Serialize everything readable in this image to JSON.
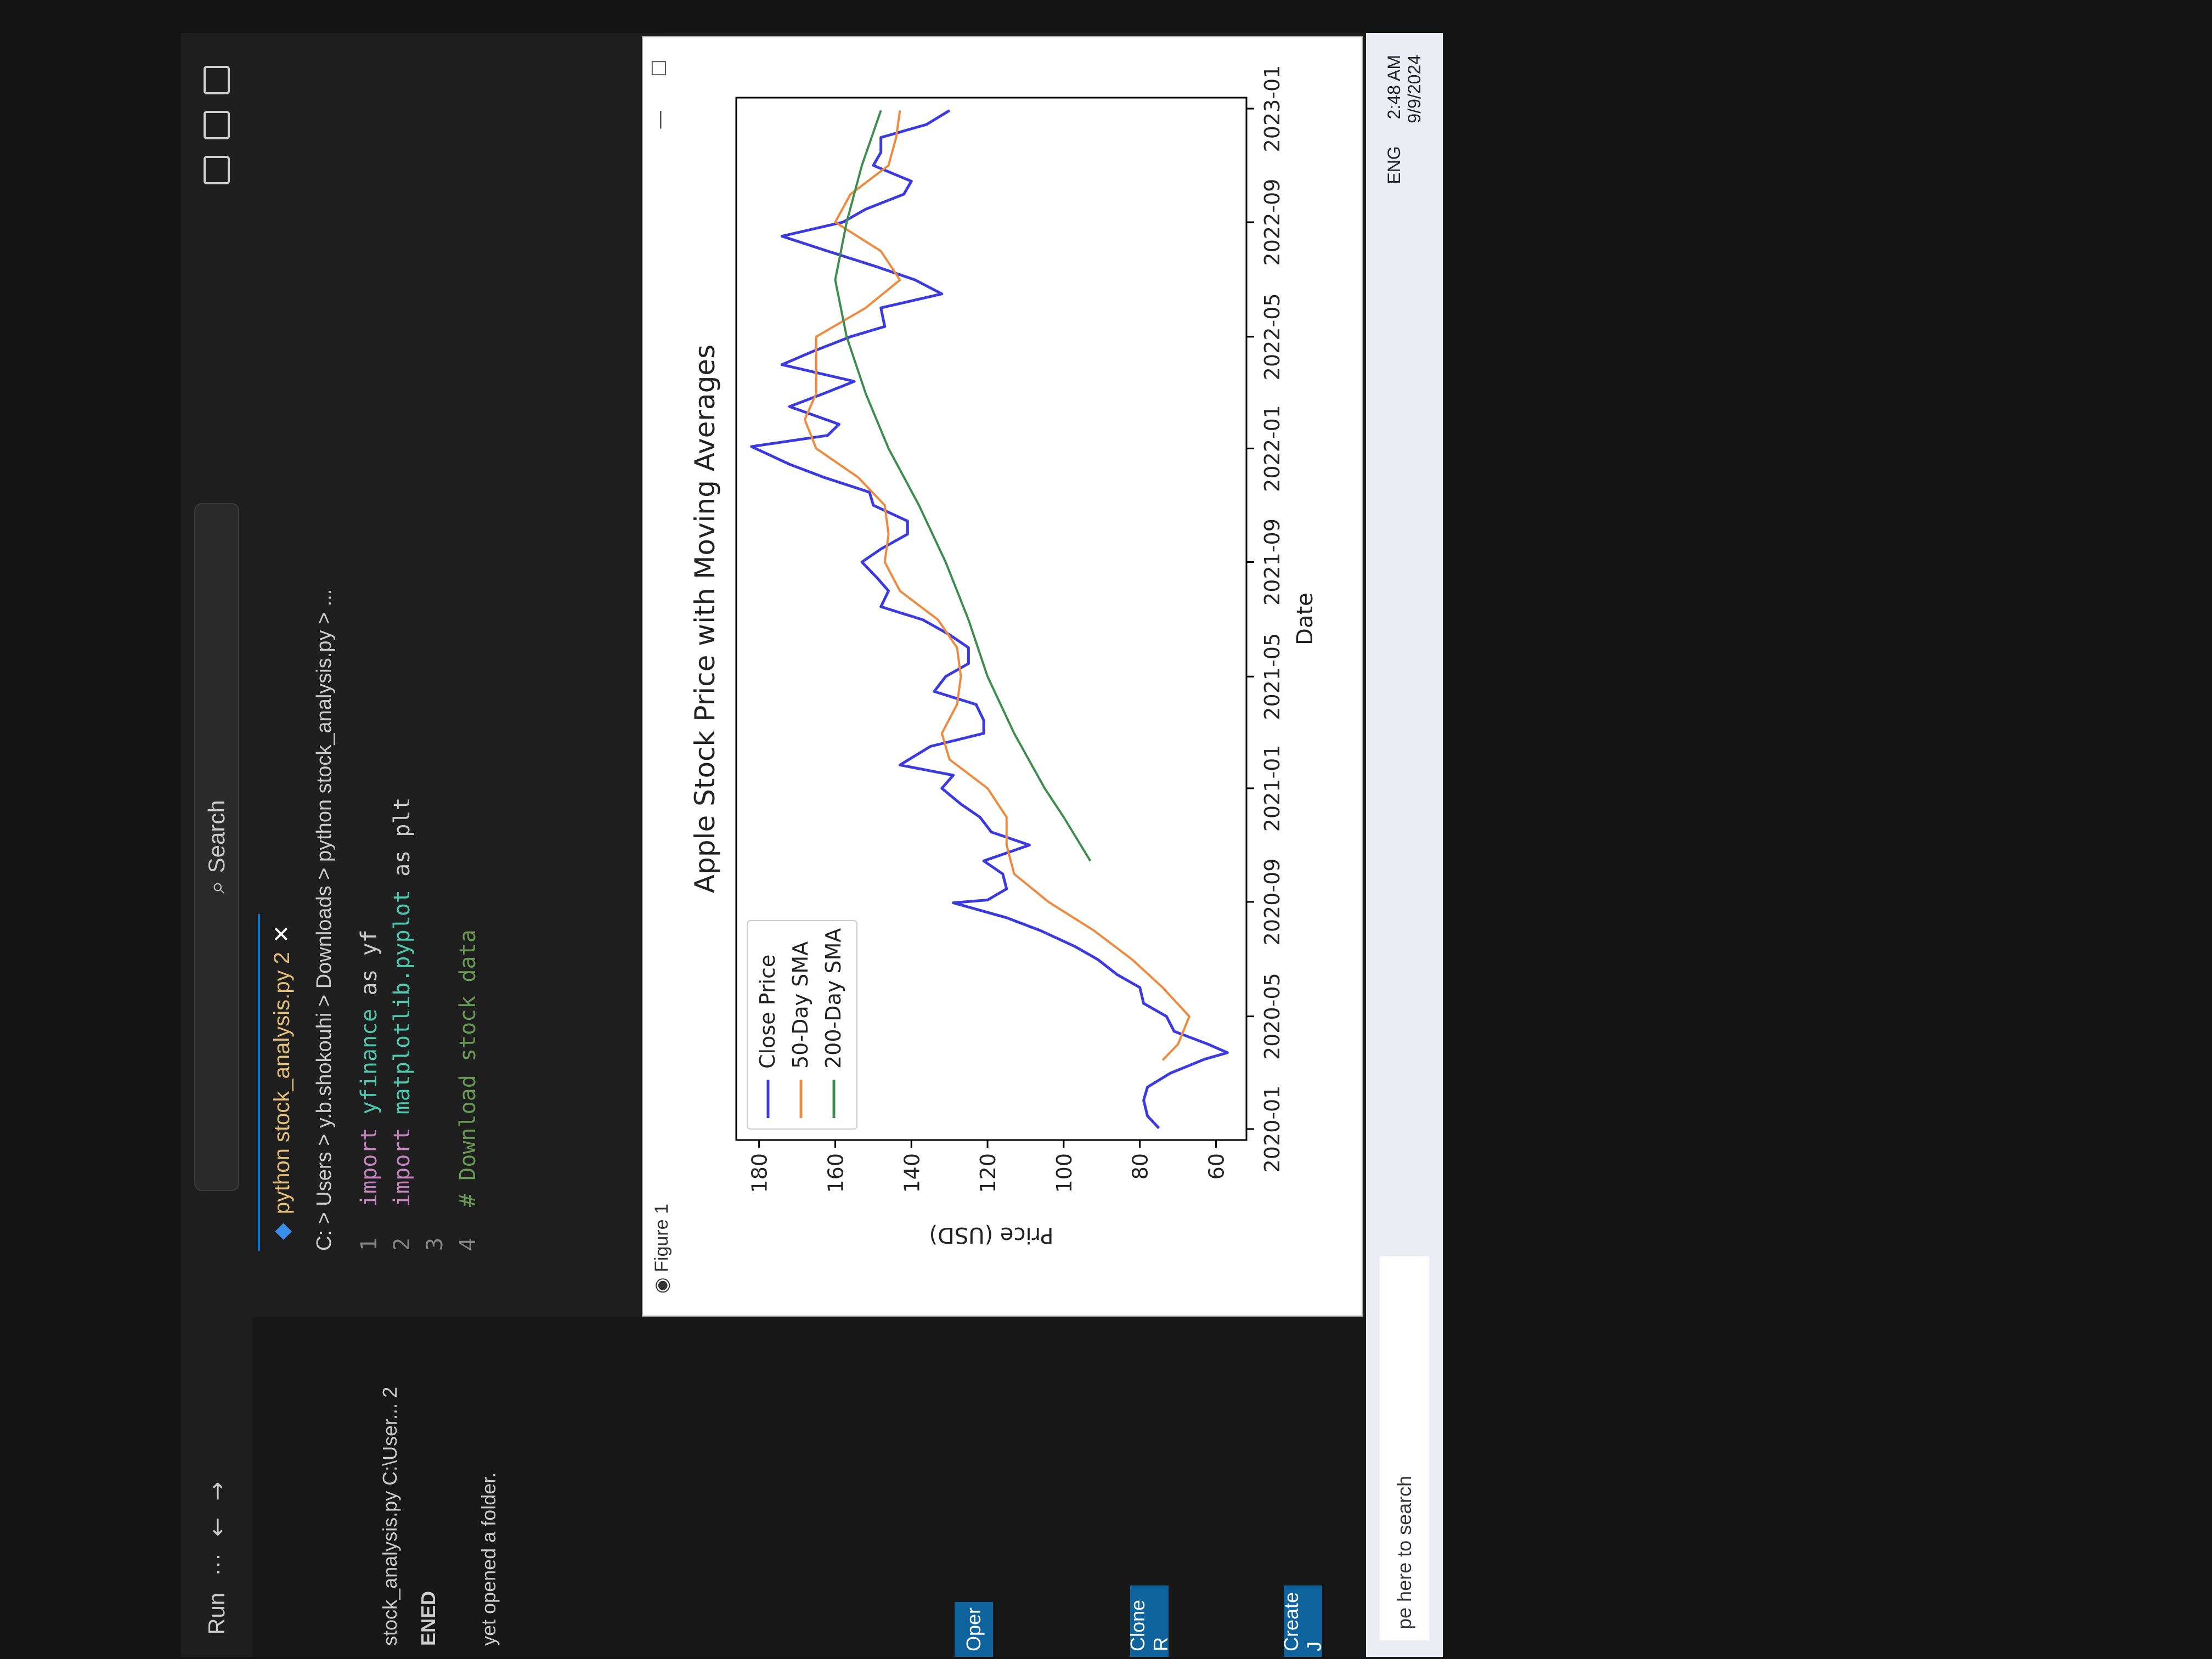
{
  "titlebar": {
    "menu_run": "Run",
    "menu_more": "···",
    "search_label": "Search"
  },
  "sidebar": {
    "open_editor_label": "stock_analysis.py C:\\User... 2",
    "ended_label": "ENED",
    "no_folder_text": "yet opened a folder.",
    "open_button": "Oper",
    "clone_button": "Clone R",
    "create_button": "Create J"
  },
  "editor": {
    "tab_label": "python stock_analysis.py 2",
    "breadcrumb": "C: > Users > y.b.shokouhi > Downloads > python stock_analysis.py > ...",
    "lines": [
      {
        "num": "1",
        "kw": "import",
        "mod": "yfinance",
        "rest": " as yf"
      },
      {
        "num": "2",
        "kw": "import",
        "mod": "matplotlib.pyplot",
        "rest": " as plt"
      },
      {
        "num": "3",
        "kw": "",
        "mod": "",
        "rest": ""
      },
      {
        "num": "4",
        "kw": "",
        "mod": "",
        "rest": "# Download stock data"
      }
    ]
  },
  "figure": {
    "window_title": "Figure 1"
  },
  "taskbar": {
    "search_placeholder": "pe here to search",
    "lang": "ENG",
    "time": "2:48 AM",
    "date": "9/9/2024"
  },
  "colors": {
    "close": "#3a3ae0",
    "sma50": "#ee8a3e",
    "sma200": "#3e8c4e"
  },
  "chart_data": {
    "type": "line",
    "title": "Apple Stock Price with Moving Averages",
    "xlabel": "Date",
    "ylabel": "Price (USD)",
    "xlim": [
      "2020-01-01",
      "2023-01-01"
    ],
    "ylim": [
      52,
      186
    ],
    "x_ticks": [
      "2020-01",
      "2020-05",
      "2020-09",
      "2021-01",
      "2021-05",
      "2021-09",
      "2022-01",
      "2022-05",
      "2022-09",
      "2023-01"
    ],
    "y_ticks": [
      60,
      80,
      100,
      120,
      140,
      160,
      180
    ],
    "legend_position": "upper-left",
    "series": [
      {
        "name": "Close Price",
        "x": [
          "2020-01-02",
          "2020-01-15",
          "2020-02-01",
          "2020-02-15",
          "2020-03-01",
          "2020-03-16",
          "2020-03-23",
          "2020-04-01",
          "2020-04-15",
          "2020-05-01",
          "2020-05-15",
          "2020-06-01",
          "2020-06-15",
          "2020-07-01",
          "2020-07-15",
          "2020-08-01",
          "2020-08-15",
          "2020-08-31",
          "2020-09-03",
          "2020-09-15",
          "2020-10-01",
          "2020-10-15",
          "2020-11-01",
          "2020-11-15",
          "2020-12-01",
          "2020-12-15",
          "2021-01-01",
          "2021-01-15",
          "2021-01-26",
          "2021-02-15",
          "2021-03-01",
          "2021-03-15",
          "2021-04-01",
          "2021-04-15",
          "2021-05-01",
          "2021-05-15",
          "2021-06-01",
          "2021-06-15",
          "2021-07-01",
          "2021-07-15",
          "2021-08-01",
          "2021-08-15",
          "2021-09-01",
          "2021-09-15",
          "2021-10-01",
          "2021-10-15",
          "2021-11-01",
          "2021-11-15",
          "2021-12-01",
          "2021-12-15",
          "2022-01-03",
          "2022-01-15",
          "2022-01-27",
          "2022-02-15",
          "2022-03-01",
          "2022-03-14",
          "2022-04-01",
          "2022-04-15",
          "2022-05-01",
          "2022-05-12",
          "2022-06-01",
          "2022-06-16",
          "2022-07-01",
          "2022-07-15",
          "2022-08-01",
          "2022-08-17",
          "2022-09-01",
          "2022-09-15",
          "2022-10-01",
          "2022-10-15",
          "2022-11-01",
          "2022-11-15",
          "2022-12-01",
          "2022-12-15",
          "2022-12-30"
        ],
        "values": [
          75,
          78,
          79,
          78,
          72,
          63,
          57,
          62,
          71,
          73,
          79,
          80,
          86,
          91,
          97,
          106,
          115,
          129,
          120,
          115,
          116,
          121,
          109,
          119,
          122,
          127,
          132,
          129,
          143,
          135,
          121,
          121,
          123,
          134,
          131,
          125,
          125,
          130,
          137,
          148,
          146,
          149,
          153,
          148,
          141,
          141,
          150,
          151,
          163,
          172,
          182,
          162,
          159,
          172,
          163,
          155,
          174,
          166,
          156,
          147,
          148,
          132,
          139,
          149,
          162,
          174,
          158,
          152,
          142,
          140,
          150,
          148,
          148,
          136,
          130
        ]
      },
      {
        "name": "50-Day SMA",
        "x": [
          "2020-03-15",
          "2020-04-01",
          "2020-05-01",
          "2020-06-01",
          "2020-07-01",
          "2020-08-01",
          "2020-09-01",
          "2020-10-01",
          "2020-11-01",
          "2020-12-01",
          "2021-01-01",
          "2021-02-01",
          "2021-03-01",
          "2021-04-01",
          "2021-05-01",
          "2021-06-01",
          "2021-07-01",
          "2021-08-01",
          "2021-09-01",
          "2021-10-01",
          "2021-11-01",
          "2021-12-01",
          "2022-01-01",
          "2022-02-01",
          "2022-03-01",
          "2022-04-01",
          "2022-05-01",
          "2022-06-01",
          "2022-07-01",
          "2022-08-01",
          "2022-09-01",
          "2022-10-01",
          "2022-11-01",
          "2022-12-01",
          "2022-12-30"
        ],
        "values": [
          74,
          70,
          67,
          74,
          82,
          92,
          104,
          113,
          115,
          115,
          120,
          130,
          132,
          128,
          127,
          128,
          133,
          143,
          147,
          146,
          147,
          154,
          165,
          168,
          165,
          165,
          165,
          152,
          143,
          148,
          160,
          156,
          146,
          144,
          143
        ]
      },
      {
        "name": "200-Day SMA",
        "x": [
          "2020-10-15",
          "2020-12-01",
          "2021-01-01",
          "2021-03-01",
          "2021-05-01",
          "2021-07-01",
          "2021-09-01",
          "2021-11-01",
          "2022-01-01",
          "2022-03-01",
          "2022-05-01",
          "2022-07-01",
          "2022-09-01",
          "2022-11-01",
          "2022-12-30"
        ],
        "values": [
          93,
          100,
          105,
          113,
          120,
          125,
          131,
          138,
          146,
          152,
          157,
          160,
          157,
          153,
          148
        ]
      }
    ]
  }
}
